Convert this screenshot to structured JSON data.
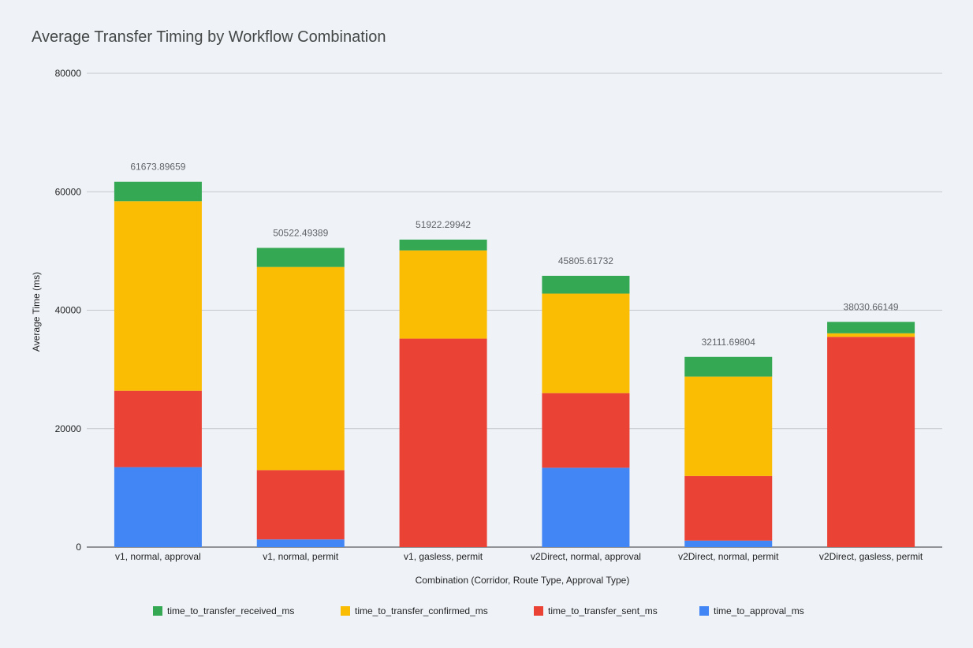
{
  "chart_data": {
    "type": "bar",
    "stacked": true,
    "title": "Average Transfer Timing by Workflow Combination",
    "xlabel": "Combination (Corridor, Route Type, Approval Type)",
    "ylabel": "Average Time (ms)",
    "ylim": [
      0,
      80000
    ],
    "yticks": [
      "0",
      "20000",
      "40000",
      "60000",
      "80000"
    ],
    "grid": true,
    "legend_position": "bottom",
    "categories": [
      "v1, normal, approval",
      "v1, normal, permit",
      "v1, gasless, permit",
      "v2Direct, normal, approval",
      "v2Direct, normal, permit",
      "v2Direct, gasless, permit"
    ],
    "totals": [
      "61673.89659",
      "50522.49389",
      "51922.29942",
      "45805.61732",
      "32111.69804",
      "38030.66149"
    ],
    "series": [
      {
        "name": "time_to_approval_ms",
        "color": "#4285f4",
        "values": [
          13500,
          1300,
          0,
          13400,
          1100,
          0
        ]
      },
      {
        "name": "time_to_transfer_sent_ms",
        "color": "#ea4335",
        "values": [
          12900,
          11700,
          35200,
          12600,
          10900,
          35500
        ]
      },
      {
        "name": "time_to_transfer_confirmed_ms",
        "color": "#fbbc04",
        "values": [
          32000,
          34300,
          14900,
          16800,
          16800,
          600
        ]
      },
      {
        "name": "time_to_transfer_received_ms",
        "color": "#34a853",
        "values": [
          3273.89659,
          3222.49389,
          1822.29942,
          3005.61732,
          3311.69804,
          1930.66149
        ]
      }
    ],
    "legend_order": [
      "time_to_transfer_received_ms",
      "time_to_transfer_confirmed_ms",
      "time_to_transfer_sent_ms",
      "time_to_approval_ms"
    ]
  }
}
